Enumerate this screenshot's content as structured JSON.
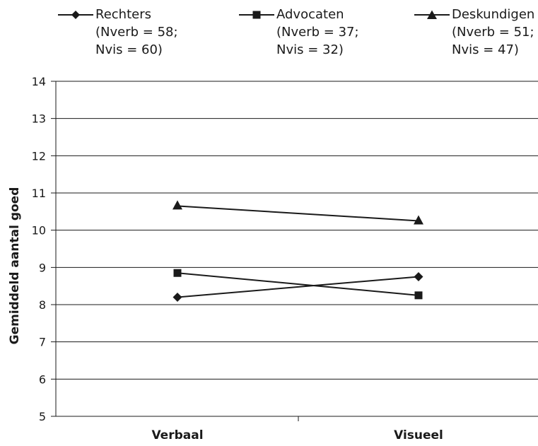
{
  "chart_data": {
    "type": "line",
    "categories": [
      "Verbaal",
      "Visueel"
    ],
    "ylabel": "Gemiddeld aantal goed",
    "xlabel": "",
    "ylim": [
      5,
      14
    ],
    "yticks": [
      "5",
      "6",
      "7",
      "8",
      "9",
      "10",
      "11",
      "12",
      "13",
      "14"
    ],
    "grid": true,
    "legend_position": "top",
    "series": [
      {
        "name": "Rechters",
        "marker": "diamond",
        "values": [
          8.2,
          8.75
        ],
        "legend_lines": [
          "(Nverb = 58;",
          "Nvis = 60)"
        ]
      },
      {
        "name": "Advocaten",
        "marker": "square",
        "values": [
          8.85,
          8.25
        ],
        "legend_lines": [
          "(Nverb = 37;",
          "Nvis = 32)"
        ]
      },
      {
        "name": "Deskundigen",
        "marker": "triangle",
        "values": [
          10.65,
          10.25
        ],
        "legend_lines": [
          "(Nverb = 51;",
          "Nvis = 47)"
        ]
      }
    ],
    "colors": {
      "line": "#1a1a1a",
      "grid": "#1a1a1a",
      "background": "#ffffff"
    }
  }
}
